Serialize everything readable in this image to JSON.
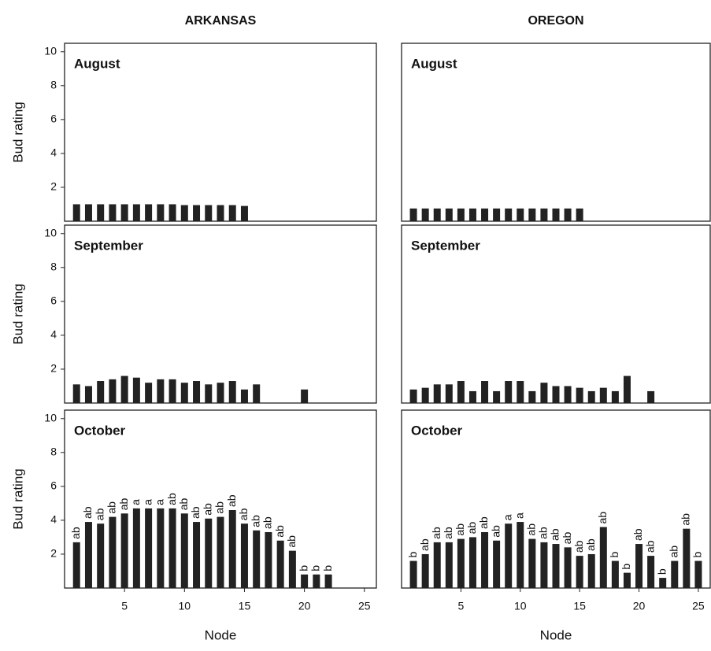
{
  "chart_data": [
    {
      "type": "bar",
      "title": "ARKANSAS",
      "panel_label": "August",
      "ylabel": "Bud rating",
      "x": [
        1,
        2,
        3,
        4,
        5,
        6,
        7,
        8,
        9,
        10,
        11,
        12,
        13,
        14,
        15
      ],
      "values": [
        1.0,
        1.0,
        1.0,
        1.0,
        1.0,
        1.0,
        1.0,
        1.0,
        1.0,
        0.95,
        0.95,
        0.95,
        0.95,
        0.95,
        0.9
      ],
      "xlim": [
        0,
        26
      ],
      "ylim": [
        0,
        10.5
      ],
      "yticks": [
        2,
        4,
        6,
        8,
        10
      ],
      "color": "#222222"
    },
    {
      "type": "bar",
      "title": "OREGON",
      "panel_label": "August",
      "x": [
        1,
        2,
        3,
        4,
        5,
        6,
        7,
        8,
        9,
        10,
        11,
        12,
        13,
        14,
        15
      ],
      "values": [
        0.75,
        0.75,
        0.75,
        0.75,
        0.75,
        0.75,
        0.75,
        0.75,
        0.75,
        0.75,
        0.75,
        0.75,
        0.75,
        0.75,
        0.75
      ],
      "xlim": [
        0,
        26
      ],
      "ylim": [
        0,
        10.5
      ],
      "color": "#222222"
    },
    {
      "type": "bar",
      "panel_label": "September",
      "ylabel": "Bud rating",
      "x": [
        1,
        2,
        3,
        4,
        5,
        6,
        7,
        8,
        9,
        10,
        11,
        12,
        13,
        14,
        15,
        16,
        20
      ],
      "values": [
        1.1,
        1.0,
        1.3,
        1.4,
        1.6,
        1.5,
        1.2,
        1.4,
        1.4,
        1.2,
        1.3,
        1.1,
        1.2,
        1.3,
        0.8,
        1.1,
        0.8
      ],
      "xlim": [
        0,
        26
      ],
      "ylim": [
        0,
        10.5
      ],
      "yticks": [
        2,
        4,
        6,
        8,
        10
      ],
      "color": "#222222"
    },
    {
      "type": "bar",
      "panel_label": "September",
      "x": [
        1,
        2,
        3,
        4,
        5,
        6,
        7,
        8,
        9,
        10,
        11,
        12,
        13,
        14,
        15,
        16,
        17,
        18,
        19,
        21
      ],
      "values": [
        0.8,
        0.9,
        1.1,
        1.1,
        1.3,
        0.7,
        1.3,
        0.7,
        1.3,
        1.3,
        0.7,
        1.2,
        1.0,
        1.0,
        0.9,
        0.7,
        0.9,
        0.7,
        1.6,
        0.7
      ],
      "xlim": [
        0,
        26
      ],
      "ylim": [
        0,
        10.5
      ],
      "color": "#222222"
    },
    {
      "type": "bar",
      "panel_label": "October",
      "ylabel": "Bud rating",
      "xlabel": "Node",
      "x": [
        1,
        2,
        3,
        4,
        5,
        6,
        7,
        8,
        9,
        10,
        11,
        12,
        13,
        14,
        15,
        16,
        17,
        18,
        19,
        20,
        21,
        22
      ],
      "values": [
        2.7,
        3.9,
        3.8,
        4.2,
        4.4,
        4.7,
        4.7,
        4.7,
        4.7,
        4.4,
        3.9,
        4.1,
        4.2,
        4.6,
        3.8,
        3.4,
        3.3,
        2.8,
        2.2,
        0.8,
        0.8,
        0.8
      ],
      "letters": [
        "ab",
        "ab",
        "ab",
        "ab",
        "ab",
        "a",
        "a",
        "a",
        "ab",
        "ab",
        "ab",
        "ab",
        "ab",
        "ab",
        "ab",
        "ab",
        "ab",
        "ab",
        "ab",
        "b",
        "b",
        "b"
      ],
      "xlim": [
        0,
        26
      ],
      "ylim": [
        0,
        10.5
      ],
      "xticks": [
        5,
        10,
        15,
        20,
        25
      ],
      "yticks": [
        2,
        4,
        6,
        8,
        10
      ],
      "color": "#222222"
    },
    {
      "type": "bar",
      "panel_label": "October",
      "xlabel": "Node",
      "x": [
        1,
        2,
        3,
        4,
        5,
        6,
        7,
        8,
        9,
        10,
        11,
        12,
        13,
        14,
        15,
        16,
        17,
        18,
        19,
        20,
        21,
        22,
        23,
        24,
        25
      ],
      "values": [
        1.6,
        2.0,
        2.7,
        2.7,
        2.9,
        3.0,
        3.3,
        2.8,
        3.8,
        3.9,
        2.9,
        2.7,
        2.6,
        2.4,
        1.9,
        2.0,
        3.6,
        1.6,
        0.9,
        2.6,
        1.9,
        0.6,
        1.6,
        3.5,
        1.6
      ],
      "letters": [
        "b",
        "ab",
        "ab",
        "ab",
        "ab",
        "ab",
        "ab",
        "ab",
        "a",
        "a",
        "ab",
        "ab",
        "ab",
        "ab",
        "ab",
        "ab",
        "ab",
        "b",
        "b",
        "ab",
        "ab",
        "b",
        "ab",
        "ab",
        "b"
      ],
      "xlim": [
        0,
        26
      ],
      "ylim": [
        0,
        10.5
      ],
      "xticks": [
        5,
        10,
        15,
        20,
        25
      ],
      "color": "#222222"
    }
  ]
}
